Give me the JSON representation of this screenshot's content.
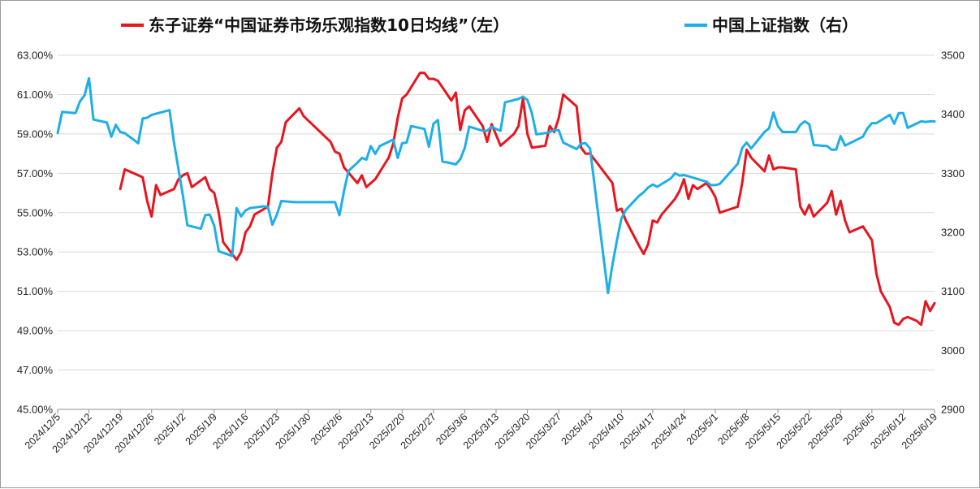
{
  "chart_data": {
    "type": "line",
    "legend_position": "top",
    "grid": true,
    "y_left": {
      "ylim": [
        45,
        63
      ],
      "ticks": [
        "45.00%",
        "47.00%",
        "49.00%",
        "51.00%",
        "53.00%",
        "55.00%",
        "57.00%",
        "59.00%",
        "61.00%",
        "63.00%"
      ]
    },
    "y_right": {
      "ylim": [
        2900,
        3500
      ],
      "ticks": [
        "2900",
        "3000",
        "3100",
        "3200",
        "3300",
        "3400",
        "3500"
      ]
    },
    "x_range": [
      "2024-12-05",
      "2025-06-19"
    ],
    "x_tick_labels": [
      "2024/12/5",
      "2024/12/12",
      "2024/12/19",
      "2024/12/26",
      "2025/1/2",
      "2025/1/9",
      "2025/1/16",
      "2025/1/23",
      "2025/1/30",
      "2025/2/6",
      "2025/2/13",
      "2025/2/20",
      "2025/2/27",
      "2025/3/6",
      "2025/3/13",
      "2025/3/20",
      "2025/3/27",
      "2025/4/3",
      "2025/4/10",
      "2025/4/17",
      "2025/4/24",
      "2025/5/1",
      "2025/5/8",
      "2025/5/15",
      "2025/5/22",
      "2025/5/29",
      "2025/6/5",
      "2025/6/12",
      "2025/6/19"
    ],
    "series": [
      {
        "name": "东子证券“中国证券市场乐观指数10日均线”（左）",
        "axis": "left",
        "color": "#e8141e",
        "points": [
          [
            "2024-12-19",
            56.2
          ],
          [
            "2024-12-20",
            57.2
          ],
          [
            "2024-12-23",
            56.9
          ],
          [
            "2024-12-24",
            56.8
          ],
          [
            "2024-12-25",
            55.6
          ],
          [
            "2024-12-26",
            54.8
          ],
          [
            "2024-12-27",
            56.4
          ],
          [
            "2024-12-28",
            55.9
          ],
          [
            "2024-12-31",
            56.2
          ],
          [
            "2025-01-01",
            56.7
          ],
          [
            "2025-01-02",
            56.9
          ],
          [
            "2025-01-03",
            57.0
          ],
          [
            "2025-01-04",
            56.3
          ],
          [
            "2025-01-07",
            56.8
          ],
          [
            "2025-01-08",
            56.2
          ],
          [
            "2025-01-09",
            56.0
          ],
          [
            "2025-01-10",
            55.0
          ],
          [
            "2025-01-11",
            53.5
          ],
          [
            "2025-01-14",
            52.6
          ],
          [
            "2025-01-15",
            53.0
          ],
          [
            "2025-01-16",
            54.0
          ],
          [
            "2025-01-17",
            54.3
          ],
          [
            "2025-01-18",
            54.9
          ],
          [
            "2025-01-21",
            55.3
          ],
          [
            "2025-01-22",
            57.0
          ],
          [
            "2025-01-23",
            58.3
          ],
          [
            "2025-01-24",
            58.6
          ],
          [
            "2025-01-25",
            59.6
          ],
          [
            "2025-01-28",
            60.3
          ],
          [
            "2025-01-29",
            59.9
          ],
          [
            "2025-02-04",
            58.6
          ],
          [
            "2025-02-05",
            58.1
          ],
          [
            "2025-02-06",
            58.0
          ],
          [
            "2025-02-07",
            57.3
          ],
          [
            "2025-02-10",
            56.5
          ],
          [
            "2025-02-11",
            56.9
          ],
          [
            "2025-02-12",
            56.3
          ],
          [
            "2025-02-14",
            56.7
          ],
          [
            "2025-02-17",
            57.8
          ],
          [
            "2025-02-18",
            58.5
          ],
          [
            "2025-02-19",
            59.8
          ],
          [
            "2025-02-20",
            60.8
          ],
          [
            "2025-02-21",
            61.0
          ],
          [
            "2025-02-24",
            62.1
          ],
          [
            "2025-02-25",
            62.1
          ],
          [
            "2025-02-26",
            61.8
          ],
          [
            "2025-02-27",
            61.8
          ],
          [
            "2025-02-28",
            61.7
          ],
          [
            "2025-03-03",
            60.7
          ],
          [
            "2025-03-04",
            61.1
          ],
          [
            "2025-03-05",
            59.2
          ],
          [
            "2025-03-06",
            60.2
          ],
          [
            "2025-03-07",
            60.4
          ],
          [
            "2025-03-10",
            59.4
          ],
          [
            "2025-03-11",
            58.6
          ],
          [
            "2025-03-12",
            59.5
          ],
          [
            "2025-03-14",
            58.4
          ],
          [
            "2025-03-17",
            59.0
          ],
          [
            "2025-03-18",
            59.4
          ],
          [
            "2025-03-19",
            60.8
          ],
          [
            "2025-03-20",
            59.0
          ],
          [
            "2025-03-21",
            58.3
          ],
          [
            "2025-03-24",
            58.4
          ],
          [
            "2025-03-25",
            59.4
          ],
          [
            "2025-03-26",
            59.1
          ],
          [
            "2025-03-27",
            59.8
          ],
          [
            "2025-03-28",
            61.0
          ],
          [
            "2025-03-31",
            60.4
          ],
          [
            "2025-04-01",
            58.3
          ],
          [
            "2025-04-02",
            58.0
          ],
          [
            "2025-04-03",
            58.0
          ],
          [
            "2025-04-08",
            56.5
          ],
          [
            "2025-04-09",
            55.1
          ],
          [
            "2025-04-10",
            55.2
          ],
          [
            "2025-04-11",
            54.6
          ],
          [
            "2025-04-14",
            53.3
          ],
          [
            "2025-04-15",
            52.9
          ],
          [
            "2025-04-16",
            53.4
          ],
          [
            "2025-04-17",
            54.6
          ],
          [
            "2025-04-18",
            54.5
          ],
          [
            "2025-04-19",
            54.9
          ],
          [
            "2025-04-22",
            55.7
          ],
          [
            "2025-04-23",
            56.1
          ],
          [
            "2025-04-24",
            56.7
          ],
          [
            "2025-04-25",
            55.7
          ],
          [
            "2025-04-26",
            56.4
          ],
          [
            "2025-04-27",
            56.2
          ],
          [
            "2025-04-29",
            56.5
          ],
          [
            "2025-04-30",
            56.2
          ],
          [
            "2025-05-01",
            55.8
          ],
          [
            "2025-05-02",
            55.0
          ],
          [
            "2025-05-06",
            55.3
          ],
          [
            "2025-05-07",
            56.5
          ],
          [
            "2025-05-08",
            58.2
          ],
          [
            "2025-05-09",
            57.8
          ],
          [
            "2025-05-12",
            57.1
          ],
          [
            "2025-05-13",
            57.9
          ],
          [
            "2025-05-14",
            57.2
          ],
          [
            "2025-05-15",
            57.3
          ],
          [
            "2025-05-16",
            57.3
          ],
          [
            "2025-05-19",
            57.2
          ],
          [
            "2025-05-20",
            55.3
          ],
          [
            "2025-05-21",
            54.9
          ],
          [
            "2025-05-22",
            55.4
          ],
          [
            "2025-05-23",
            54.8
          ],
          [
            "2025-05-26",
            55.5
          ],
          [
            "2025-05-27",
            56.1
          ],
          [
            "2025-05-28",
            54.9
          ],
          [
            "2025-05-29",
            55.6
          ],
          [
            "2025-05-30",
            54.6
          ],
          [
            "2025-05-31",
            54.0
          ],
          [
            "2025-06-03",
            54.3
          ],
          [
            "2025-06-05",
            53.6
          ],
          [
            "2025-06-06",
            51.9
          ],
          [
            "2025-06-07",
            51.0
          ],
          [
            "2025-06-09",
            50.2
          ],
          [
            "2025-06-10",
            49.4
          ],
          [
            "2025-06-11",
            49.3
          ],
          [
            "2025-06-12",
            49.6
          ],
          [
            "2025-06-13",
            49.7
          ],
          [
            "2025-06-15",
            49.5
          ],
          [
            "2025-06-16",
            49.3
          ],
          [
            "2025-06-17",
            50.5
          ],
          [
            "2025-06-18",
            50.0
          ],
          [
            "2025-06-19",
            50.4
          ]
        ]
      },
      {
        "name": "中国上证指数（右）",
        "axis": "right",
        "color": "#1eaee8",
        "points": [
          [
            "2024-12-05",
            3368
          ],
          [
            "2024-12-06",
            3404
          ],
          [
            "2024-12-09",
            3402
          ],
          [
            "2024-12-10",
            3422
          ],
          [
            "2024-12-11",
            3432
          ],
          [
            "2024-12-12",
            3461
          ],
          [
            "2024-12-13",
            3391
          ],
          [
            "2024-12-16",
            3386
          ],
          [
            "2024-12-17",
            3362
          ],
          [
            "2024-12-18",
            3382
          ],
          [
            "2024-12-19",
            3370
          ],
          [
            "2024-12-20",
            3368
          ],
          [
            "2024-12-23",
            3351
          ],
          [
            "2024-12-24",
            3393
          ],
          [
            "2024-12-25",
            3394
          ],
          [
            "2024-12-26",
            3399
          ],
          [
            "2024-12-30",
            3407
          ],
          [
            "2024-12-31",
            3352
          ],
          [
            "2025-01-02",
            3262
          ],
          [
            "2025-01-03",
            3212
          ],
          [
            "2025-01-06",
            3206
          ],
          [
            "2025-01-07",
            3229
          ],
          [
            "2025-01-08",
            3230
          ],
          [
            "2025-01-09",
            3211
          ],
          [
            "2025-01-10",
            3168
          ],
          [
            "2025-01-13",
            3160
          ],
          [
            "2025-01-14",
            3241
          ],
          [
            "2025-01-15",
            3227
          ],
          [
            "2025-01-16",
            3237
          ],
          [
            "2025-01-17",
            3241
          ],
          [
            "2025-01-20",
            3244
          ],
          [
            "2025-01-21",
            3243
          ],
          [
            "2025-01-22",
            3213
          ],
          [
            "2025-01-23",
            3230
          ],
          [
            "2025-01-24",
            3253
          ],
          [
            "2025-01-27",
            3251
          ],
          [
            "2025-02-05",
            3251
          ],
          [
            "2025-02-06",
            3229
          ],
          [
            "2025-02-07",
            3270
          ],
          [
            "2025-02-08",
            3304
          ],
          [
            "2025-02-10",
            3318
          ],
          [
            "2025-02-11",
            3326
          ],
          [
            "2025-02-12",
            3323
          ],
          [
            "2025-02-13",
            3346
          ],
          [
            "2025-02-14",
            3333
          ],
          [
            "2025-02-15",
            3346
          ],
          [
            "2025-02-18",
            3357
          ],
          [
            "2025-02-19",
            3326
          ],
          [
            "2025-02-20",
            3351
          ],
          [
            "2025-02-21",
            3352
          ],
          [
            "2025-02-22",
            3380
          ],
          [
            "2025-02-25",
            3375
          ],
          [
            "2025-02-26",
            3345
          ],
          [
            "2025-02-27",
            3384
          ],
          [
            "2025-02-28",
            3390
          ],
          [
            "2025-03-01",
            3320
          ],
          [
            "2025-03-03",
            3317
          ],
          [
            "2025-03-04",
            3315
          ],
          [
            "2025-03-05",
            3324
          ],
          [
            "2025-03-06",
            3343
          ],
          [
            "2025-03-07",
            3379
          ],
          [
            "2025-03-10",
            3372
          ],
          [
            "2025-03-11",
            3372
          ],
          [
            "2025-03-12",
            3379
          ],
          [
            "2025-03-13",
            3375
          ],
          [
            "2025-03-14",
            3372
          ],
          [
            "2025-03-15",
            3420
          ],
          [
            "2025-03-17",
            3424
          ],
          [
            "2025-03-18",
            3426
          ],
          [
            "2025-03-19",
            3430
          ],
          [
            "2025-03-20",
            3424
          ],
          [
            "2025-03-21",
            3402
          ],
          [
            "2025-03-22",
            3366
          ],
          [
            "2025-03-24",
            3368
          ],
          [
            "2025-03-25",
            3370
          ],
          [
            "2025-03-26",
            3373
          ],
          [
            "2025-03-27",
            3373
          ],
          [
            "2025-03-28",
            3352
          ],
          [
            "2025-03-31",
            3341
          ],
          [
            "2025-04-01",
            3350
          ],
          [
            "2025-04-02",
            3351
          ],
          [
            "2025-04-03",
            3342
          ],
          [
            "2025-04-07",
            3097
          ],
          [
            "2025-04-08",
            3145
          ],
          [
            "2025-04-09",
            3186
          ],
          [
            "2025-04-10",
            3223
          ],
          [
            "2025-04-11",
            3238
          ],
          [
            "2025-04-14",
            3262
          ],
          [
            "2025-04-15",
            3268
          ],
          [
            "2025-04-16",
            3276
          ],
          [
            "2025-04-17",
            3281
          ],
          [
            "2025-04-18",
            3277
          ],
          [
            "2025-04-21",
            3291
          ],
          [
            "2025-04-22",
            3300
          ],
          [
            "2025-04-23",
            3296
          ],
          [
            "2025-04-24",
            3297
          ],
          [
            "2025-04-25",
            3295
          ],
          [
            "2025-04-28",
            3288
          ],
          [
            "2025-04-29",
            3286
          ],
          [
            "2025-04-30",
            3280
          ],
          [
            "2025-05-01",
            3280
          ],
          [
            "2025-05-02",
            3282
          ],
          [
            "2025-05-06",
            3316
          ],
          [
            "2025-05-07",
            3343
          ],
          [
            "2025-05-08",
            3352
          ],
          [
            "2025-05-09",
            3342
          ],
          [
            "2025-05-12",
            3370
          ],
          [
            "2025-05-13",
            3376
          ],
          [
            "2025-05-14",
            3403
          ],
          [
            "2025-05-15",
            3380
          ],
          [
            "2025-05-16",
            3370
          ],
          [
            "2025-05-19",
            3370
          ],
          [
            "2025-05-20",
            3382
          ],
          [
            "2025-05-21",
            3388
          ],
          [
            "2025-05-22",
            3383
          ],
          [
            "2025-05-23",
            3348
          ],
          [
            "2025-05-26",
            3346
          ],
          [
            "2025-05-27",
            3340
          ],
          [
            "2025-05-28",
            3340
          ],
          [
            "2025-05-29",
            3363
          ],
          [
            "2025-05-30",
            3347
          ],
          [
            "2025-06-03",
            3362
          ],
          [
            "2025-06-04",
            3376
          ],
          [
            "2025-06-05",
            3385
          ],
          [
            "2025-06-06",
            3385
          ],
          [
            "2025-06-09",
            3399
          ],
          [
            "2025-06-10",
            3384
          ],
          [
            "2025-06-11",
            3402
          ],
          [
            "2025-06-12",
            3402
          ],
          [
            "2025-06-13",
            3377
          ],
          [
            "2025-06-16",
            3388
          ],
          [
            "2025-06-17",
            3387
          ],
          [
            "2025-06-18",
            3388
          ],
          [
            "2025-06-19",
            3388
          ]
        ]
      }
    ]
  }
}
